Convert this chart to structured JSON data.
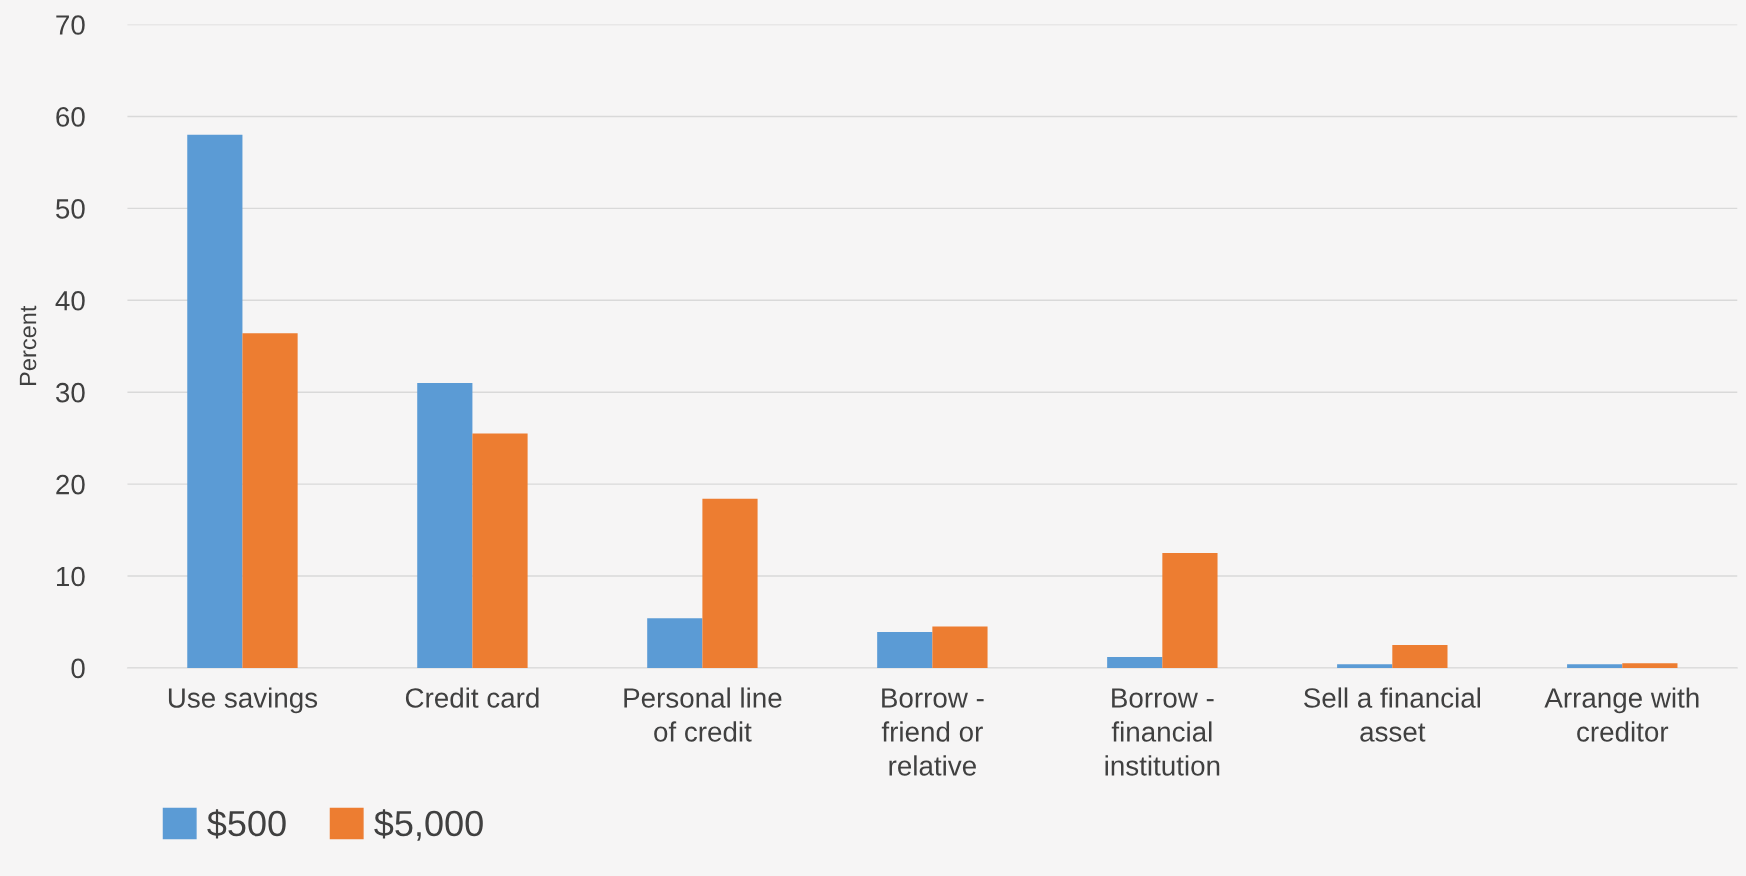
{
  "chart_data": {
    "type": "bar",
    "ylabel": "Percent",
    "categories": [
      "Use savings",
      "Credit card",
      "Personal line\nof credit",
      "Borrow -\nfriend or\nrelative",
      "Borrow -\nfinancial\ninstitution",
      "Sell a financial\nasset",
      "Arrange with\ncreditor"
    ],
    "series": [
      {
        "name": "$500",
        "color": "#5b9bd5",
        "values": [
          58.0,
          31.0,
          5.4,
          3.9,
          1.2,
          0.4,
          0.4
        ]
      },
      {
        "name": "$5,000",
        "color": "#ed7d31",
        "values": [
          36.4,
          25.5,
          18.4,
          4.5,
          12.5,
          2.5,
          0.5
        ]
      }
    ],
    "ylim": [
      0,
      70
    ],
    "yticks": [
      0,
      10,
      20,
      30,
      40,
      50,
      60,
      70
    ],
    "grid": "y",
    "legend": "bottom left"
  }
}
